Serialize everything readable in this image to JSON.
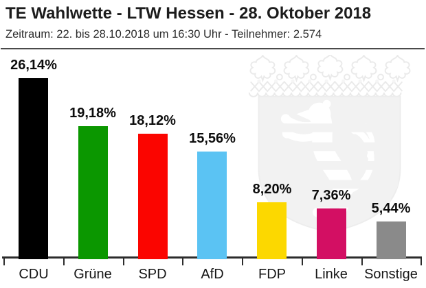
{
  "header": {
    "title": "TE Wahlwette - LTW Hessen - 28. Oktober 2018",
    "subtitle": "Zeitraum: 22. bis 28.10.2018 um 16:30 Uhr - Teilnehmer: 2.574"
  },
  "chart_data": {
    "type": "bar",
    "title": "TE Wahlwette - LTW Hessen - 28. Oktober 2018",
    "subtitle": "Zeitraum: 22. bis 28.10.2018 um 16:30 Uhr - Teilnehmer: 2.574",
    "categories": [
      "CDU",
      "Grüne",
      "SPD",
      "AfD",
      "FDP",
      "Linke",
      "Sonstige"
    ],
    "values": [
      26.14,
      19.18,
      18.12,
      15.56,
      8.2,
      7.36,
      5.44
    ],
    "value_labels": [
      "26,14%",
      "19,18%",
      "18,12%",
      "15,56%",
      "8,20%",
      "7,36%",
      "5,44%"
    ],
    "bar_colors": [
      "#000000",
      "#0b9700",
      "#fb0500",
      "#5bc3f3",
      "#fcd800",
      "#d30f63",
      "#8a8a8a"
    ],
    "xlabel": "",
    "ylabel": "",
    "ylim": [
      0,
      28
    ],
    "grid": false,
    "legend": "none",
    "axis_color": "#2c2c2c",
    "watermark": "hessen-coat-of-arms",
    "watermark_color": "#f2f2f2"
  }
}
